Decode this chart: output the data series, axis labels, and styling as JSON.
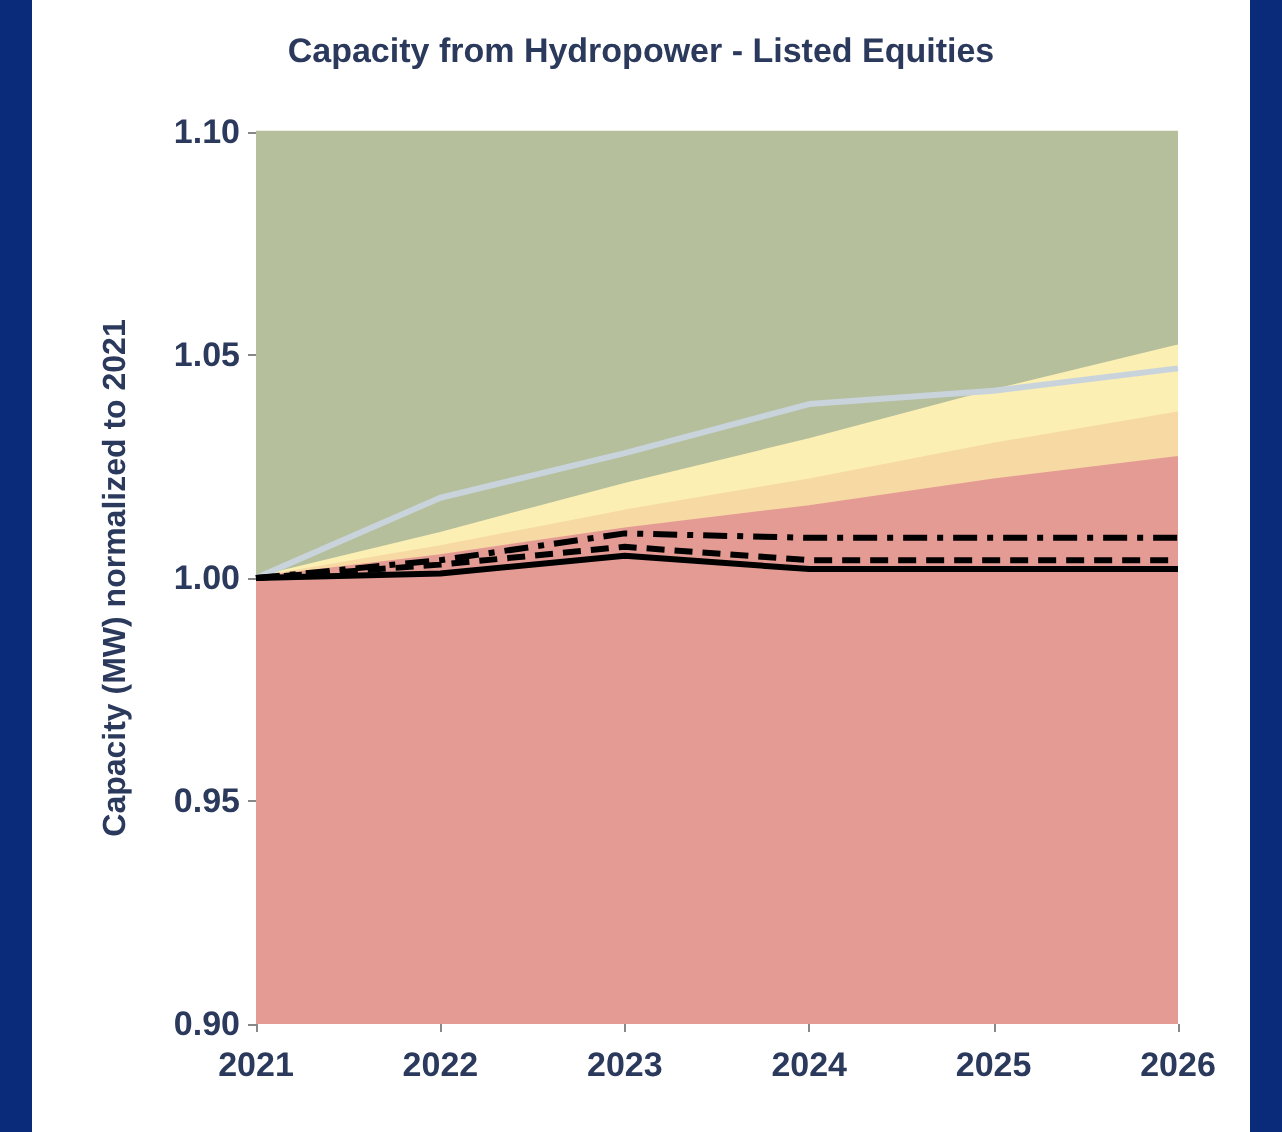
{
  "chart_data": {
    "type": "line",
    "title": "Capacity from Hydropower - Listed Equities",
    "ylabel": "Capacity (MW) normalized to 2021",
    "x": [
      2021,
      2022,
      2023,
      2024,
      2025,
      2026
    ],
    "series": [
      {
        "type": "area",
        "color": "#b5bf9c",
        "values": [
          1.1,
          1.1,
          1.1,
          1.1,
          1.1,
          1.1
        ]
      },
      {
        "type": "area",
        "color": "#fbefb4",
        "values": [
          1.0,
          1.01,
          1.021,
          1.031,
          1.042,
          1.052
        ]
      },
      {
        "type": "area",
        "color": "#f7d9a4",
        "values": [
          1.0,
          1.007,
          1.015,
          1.022,
          1.03,
          1.037
        ]
      },
      {
        "type": "area",
        "color": "#e49b94",
        "values": [
          1.0,
          1.005,
          1.011,
          1.016,
          1.022,
          1.027
        ]
      },
      {
        "type": "line",
        "color": "#c9d3dc",
        "line_style": "solid",
        "values": [
          1.0,
          1.018,
          1.028,
          1.039,
          1.042,
          1.047
        ]
      },
      {
        "type": "line",
        "color": "#000000",
        "line_style": "dashdot",
        "values": [
          1.0,
          1.004,
          1.01,
          1.009,
          1.009,
          1.009
        ]
      },
      {
        "type": "line",
        "color": "#000000",
        "line_style": "dashed",
        "values": [
          1.0,
          1.003,
          1.007,
          1.004,
          1.004,
          1.004
        ]
      },
      {
        "type": "line",
        "color": "#000000",
        "line_style": "solid",
        "values": [
          1.0,
          1.001,
          1.005,
          1.002,
          1.002,
          1.002
        ]
      }
    ],
    "xlim": [
      2021,
      2026
    ],
    "xticks": [
      2021,
      2022,
      2023,
      2024,
      2025,
      2026
    ],
    "ylim": [
      0.9,
      1.1
    ],
    "yticks": [
      {
        "value": 0.9,
        "label": "0.90"
      },
      0.95,
      {
        "value": 1.0,
        "label": "1.00"
      },
      1.05,
      {
        "value": 1.1,
        "label": "1.10"
      }
    ],
    "grid": false,
    "marker": "none"
  }
}
